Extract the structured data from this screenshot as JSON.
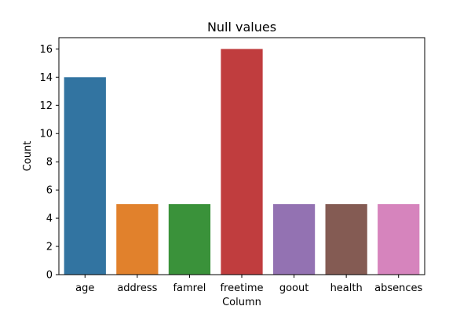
{
  "chart_data": {
    "type": "bar",
    "title": "Null values",
    "xlabel": "Column",
    "ylabel": "Count",
    "categories": [
      "age",
      "address",
      "famrel",
      "freetime",
      "goout",
      "health",
      "absences"
    ],
    "values": [
      14,
      5,
      5,
      16,
      5,
      5,
      5
    ],
    "colors": [
      "#3274a1",
      "#e1812c",
      "#3a923a",
      "#c03d3e",
      "#9372b2",
      "#845b53",
      "#d684bd"
    ],
    "yticks": [
      0,
      2,
      4,
      6,
      8,
      10,
      12,
      14,
      16
    ],
    "ylim": [
      0,
      16.8
    ],
    "grid": false,
    "legend": "none"
  }
}
